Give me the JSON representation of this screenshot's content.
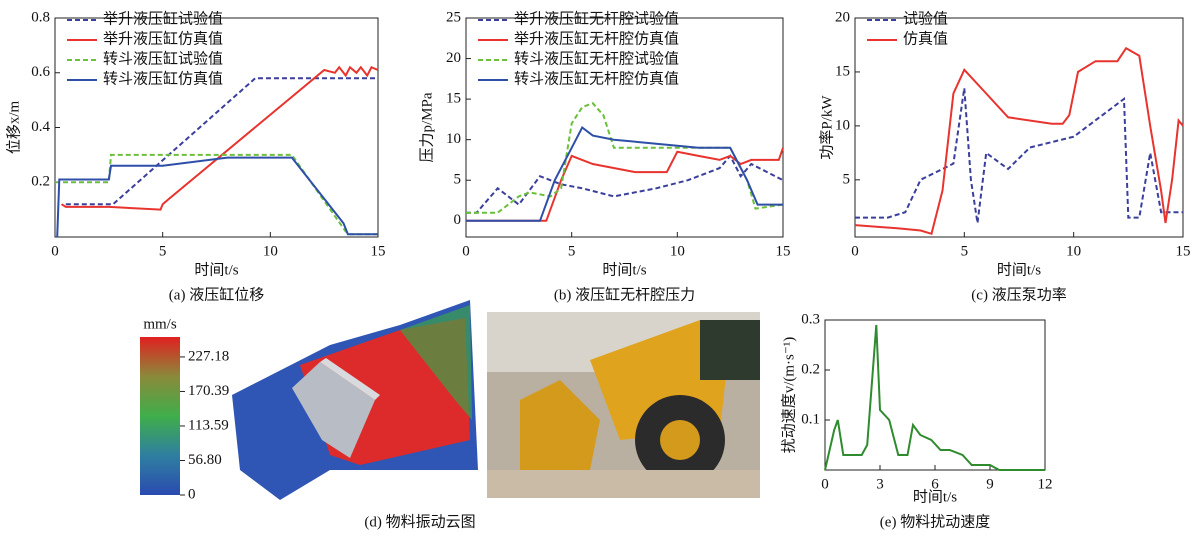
{
  "chart_data": [
    {
      "type": "line",
      "caption": "(a) 液压缸位移",
      "x_label": "时间t/s",
      "y_label": "位移x/m",
      "xlim": [
        0,
        15
      ],
      "xticks": [
        0,
        5,
        10,
        15
      ],
      "ylim": [
        0,
        0.8
      ],
      "yticks": [
        0.2,
        0.4,
        0.6,
        0.8
      ],
      "legend": "upper left",
      "series": [
        {
          "name": "举升液压缸试验值",
          "color": "#3b3f9c",
          "dash": true,
          "x": [
            0.5,
            2.7,
            9.3,
            15
          ],
          "values": [
            0.12,
            0.12,
            0.58,
            0.58
          ]
        },
        {
          "name": "举升液压缸仿真值",
          "color": "#e8332e",
          "dash": false,
          "x": [
            0.3,
            0.5,
            2.5,
            4.9,
            5.0,
            5.3,
            12.5,
            13,
            13.2,
            13.5,
            13.7,
            14,
            14.2,
            14.5,
            14.7,
            15
          ],
          "values": [
            0.12,
            0.11,
            0.11,
            0.1,
            0.12,
            0.14,
            0.61,
            0.6,
            0.62,
            0.59,
            0.62,
            0.6,
            0.62,
            0.59,
            0.62,
            0.61
          ]
        },
        {
          "name": "转斗液压缸试验值",
          "color": "#6cbf3a",
          "dash": true,
          "x": [
            0,
            2.5,
            2.6,
            11,
            13.5,
            13.7,
            15
          ],
          "values": [
            0.2,
            0.2,
            0.3,
            0.3,
            0.02,
            0.01,
            0.01
          ]
        },
        {
          "name": "转斗液压缸仿真值",
          "color": "#2e4fa8",
          "dash": false,
          "x": [
            0.1,
            0.2,
            2.5,
            2.6,
            5,
            8,
            11,
            13.4,
            13.6,
            15
          ],
          "values": [
            0,
            0.21,
            0.21,
            0.26,
            0.26,
            0.29,
            0.29,
            0.05,
            0.01,
            0.01
          ]
        }
      ]
    },
    {
      "type": "line",
      "caption": "(b) 液压缸无杆腔压力",
      "x_label": "时间t/s",
      "y_label": "压力p/MPa",
      "xlim": [
        0,
        15
      ],
      "xticks": [
        0,
        5,
        10,
        15
      ],
      "ylim": [
        -2,
        25
      ],
      "yticks": [
        0,
        5,
        10,
        15,
        20,
        25
      ],
      "legend": "upper left",
      "series": [
        {
          "name": "举升液压缸无杆腔试验值",
          "color": "#3b3f9c",
          "dash": true,
          "x": [
            0,
            0.5,
            1.5,
            2.5,
            3.5,
            4.5,
            5.5,
            7,
            9,
            10.5,
            12,
            12.5,
            13,
            13.5,
            15
          ],
          "values": [
            1,
            1,
            4,
            2,
            5.5,
            4.5,
            4,
            3,
            4,
            5,
            6.5,
            8,
            5.5,
            7,
            5
          ]
        },
        {
          "name": "举升液压缸无杆腔仿真值",
          "color": "#e8332e",
          "dash": false,
          "x": [
            0,
            3.8,
            4.5,
            5,
            6,
            8,
            9.5,
            10,
            11,
            12,
            12.5,
            13,
            13.5,
            14.8,
            15
          ],
          "values": [
            0,
            0,
            5,
            8,
            7,
            6,
            6,
            8.5,
            8,
            7.5,
            8,
            7,
            7.5,
            7.5,
            9
          ]
        },
        {
          "name": "转斗液压缸无杆腔试验值",
          "color": "#6cbf3a",
          "dash": true,
          "x": [
            0,
            1.5,
            2.5,
            3,
            4,
            4.5,
            5,
            5.5,
            6,
            6.5,
            7,
            10,
            12.5,
            13.3,
            13.7,
            15
          ],
          "values": [
            1,
            1,
            3,
            3.5,
            3,
            4,
            12,
            14,
            14.5,
            13,
            9,
            9,
            9,
            5,
            1.5,
            2
          ]
        },
        {
          "name": "转斗液压缸无杆腔仿真值",
          "color": "#2e4fa8",
          "dash": false,
          "x": [
            0,
            3.5,
            4.2,
            5,
            5.5,
            6,
            7,
            9,
            11,
            12.5,
            13.3,
            13.8,
            15
          ],
          "values": [
            0,
            0,
            5,
            9,
            11.5,
            10.5,
            10,
            9.5,
            9,
            9,
            5,
            2,
            2
          ]
        }
      ]
    },
    {
      "type": "line",
      "caption": "(c) 液压泵功率",
      "x_label": "时间t/s",
      "y_label": "功率P/kW",
      "xlim": [
        0,
        15
      ],
      "xticks": [
        0,
        5,
        10,
        15
      ],
      "ylim": [
        -0.3,
        20
      ],
      "yticks": [
        5,
        10,
        15,
        20
      ],
      "legend": "upper left",
      "series": [
        {
          "name": "试验值",
          "color": "#3b3f9c",
          "dash": true,
          "x": [
            0,
            1.5,
            2.3,
            3,
            4,
            4.5,
            5,
            5.3,
            5.6,
            6,
            7,
            8,
            10,
            12.3,
            12.5,
            13,
            13.5,
            14,
            15
          ],
          "values": [
            1.5,
            1.5,
            2,
            5,
            6,
            6.5,
            13.5,
            5,
            1,
            7.5,
            6,
            8,
            9,
            12.5,
            1.5,
            1.5,
            7.5,
            2,
            2
          ]
        },
        {
          "name": "仿真值",
          "color": "#e8332e",
          "dash": false,
          "x": [
            0,
            2,
            3,
            3.5,
            4,
            4.5,
            5,
            6,
            7,
            9,
            9.5,
            9.8,
            10.2,
            11,
            12,
            12.4,
            13,
            13.5,
            14,
            14.2,
            14.5,
            14.8,
            15
          ],
          "values": [
            0.8,
            0.5,
            0.3,
            0,
            4,
            13,
            15.2,
            13,
            10.8,
            10.2,
            10.2,
            11,
            15,
            16,
            16,
            17.2,
            16.5,
            10,
            4,
            1,
            5,
            10.5,
            10
          ]
        }
      ]
    },
    {
      "type": "line",
      "caption": "(e) 物料扰动速度",
      "x_label": "时间t/s",
      "y_label": "扰动速度v/(m·s⁻¹)",
      "xlim": [
        0,
        12
      ],
      "xticks": [
        0,
        3,
        6,
        9,
        12
      ],
      "ylim": [
        0,
        0.3
      ],
      "yticks": [
        0.1,
        0.2,
        0.3
      ],
      "legend": "none",
      "series": [
        {
          "color": "#2e8b2e",
          "dash": false,
          "x": [
            0,
            0.5,
            0.7,
            1,
            2,
            2.3,
            2.8,
            3,
            3.5,
            4,
            4.5,
            4.8,
            5.2,
            5.8,
            6.3,
            6.8,
            7.5,
            8,
            9,
            9.5,
            12
          ],
          "values": [
            0,
            0.08,
            0.1,
            0.03,
            0.03,
            0.05,
            0.29,
            0.12,
            0.1,
            0.03,
            0.03,
            0.09,
            0.07,
            0.06,
            0.04,
            0.04,
            0.03,
            0.01,
            0.01,
            0,
            0
          ]
        }
      ]
    }
  ],
  "figure_d": {
    "caption": "(d) 物料振动云图",
    "unit": "mm/s",
    "clim": [
      0,
      260
    ],
    "ticks": [
      0,
      {
        "value": 56.8,
        "label": "56.80"
      },
      113.59,
      170.39,
      227.18
    ]
  }
}
